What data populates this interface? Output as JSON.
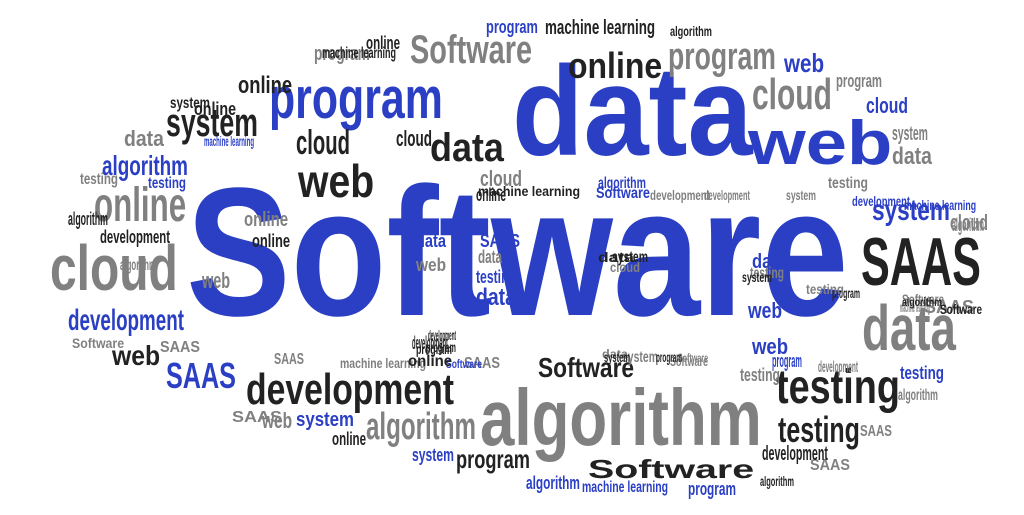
{
  "palette": {
    "blue": "#2b3fc4",
    "black": "#222222",
    "gray": "#808080",
    "background": "#ffffff"
  },
  "words": [
    {
      "text": "Software",
      "color": "blue"
    },
    {
      "text": "data",
      "color": "blue"
    },
    {
      "text": "algorithm",
      "color": "gray"
    },
    {
      "text": "program",
      "color": "blue"
    },
    {
      "text": "web",
      "color": "blue"
    },
    {
      "text": "cloud",
      "color": "gray"
    },
    {
      "text": "SAAS",
      "color": "black"
    },
    {
      "text": "data",
      "color": "gray"
    },
    {
      "text": "development",
      "color": "black"
    },
    {
      "text": "testing",
      "color": "black"
    },
    {
      "text": "online",
      "color": "gray"
    },
    {
      "text": "system",
      "color": "black"
    },
    {
      "text": "Software",
      "color": "gray"
    },
    {
      "text": "online",
      "color": "black"
    },
    {
      "text": "program",
      "color": "gray"
    },
    {
      "text": "cloud",
      "color": "gray"
    },
    {
      "text": "web",
      "color": "black"
    },
    {
      "text": "data",
      "color": "black"
    },
    {
      "text": "machine learning",
      "color": "black"
    },
    {
      "text": "algorithm",
      "color": "gray"
    },
    {
      "text": "Software",
      "color": "black"
    },
    {
      "text": "testing",
      "color": "black"
    },
    {
      "text": "SAAS",
      "color": "blue"
    },
    {
      "text": "development",
      "color": "blue"
    },
    {
      "text": "web",
      "color": "black"
    },
    {
      "text": "program",
      "color": "black"
    },
    {
      "text": "system",
      "color": "blue"
    },
    {
      "text": "algorithm",
      "color": "blue"
    },
    {
      "text": "cloud",
      "color": "black"
    },
    {
      "text": "cloud",
      "color": "black"
    },
    {
      "text": "cloud",
      "color": "blue"
    },
    {
      "text": "cloud",
      "color": "gray"
    },
    {
      "text": "cloud",
      "color": "gray"
    },
    {
      "text": "data",
      "color": "gray"
    },
    {
      "text": "data",
      "color": "gray"
    },
    {
      "text": "data",
      "color": "blue"
    },
    {
      "text": "data",
      "color": "blue"
    },
    {
      "text": "data",
      "color": "blue"
    },
    {
      "text": "data",
      "color": "gray"
    },
    {
      "text": "web",
      "color": "gray"
    },
    {
      "text": "web",
      "color": "gray"
    },
    {
      "text": "web",
      "color": "blue"
    },
    {
      "text": "web",
      "color": "blue"
    },
    {
      "text": "web",
      "color": "gray"
    },
    {
      "text": "web",
      "color": "blue"
    },
    {
      "text": "online",
      "color": "black"
    },
    {
      "text": "online",
      "color": "black"
    },
    {
      "text": "online",
      "color": "black"
    },
    {
      "text": "online",
      "color": "gray"
    },
    {
      "text": "online",
      "color": "black"
    },
    {
      "text": "online",
      "color": "black"
    },
    {
      "text": "online",
      "color": "black"
    },
    {
      "text": "program",
      "color": "gray"
    },
    {
      "text": "program",
      "color": "blue"
    },
    {
      "text": "program",
      "color": "blue"
    },
    {
      "text": "program",
      "color": "black"
    },
    {
      "text": "program",
      "color": "black"
    },
    {
      "text": "program",
      "color": "blue"
    },
    {
      "text": "program",
      "color": "gray"
    },
    {
      "text": "development",
      "color": "gray"
    },
    {
      "text": "development",
      "color": "gray"
    },
    {
      "text": "development",
      "color": "black"
    },
    {
      "text": "development",
      "color": "blue"
    },
    {
      "text": "development",
      "color": "black"
    },
    {
      "text": "development",
      "color": "black"
    },
    {
      "text": "system",
      "color": "gray"
    },
    {
      "text": "system",
      "color": "black"
    },
    {
      "text": "system",
      "color": "blue"
    },
    {
      "text": "system",
      "color": "blue"
    },
    {
      "text": "system",
      "color": "gray"
    },
    {
      "text": "system",
      "color": "black"
    },
    {
      "text": "algorithm",
      "color": "blue"
    },
    {
      "text": "algorithm",
      "color": "gray"
    },
    {
      "text": "algorithm",
      "color": "gray"
    },
    {
      "text": "algorithm",
      "color": "blue"
    },
    {
      "text": "algorithm",
      "color": "black"
    },
    {
      "text": "algorithm",
      "color": "black"
    },
    {
      "text": "algorithm",
      "color": "black"
    },
    {
      "text": "testing",
      "color": "gray"
    },
    {
      "text": "testing",
      "color": "blue"
    },
    {
      "text": "testing",
      "color": "gray"
    },
    {
      "text": "testing",
      "color": "blue"
    },
    {
      "text": "testing",
      "color": "gray"
    },
    {
      "text": "testing",
      "color": "blue"
    },
    {
      "text": "testing",
      "color": "gray"
    },
    {
      "text": "SAAS",
      "color": "blue"
    },
    {
      "text": "SAAS",
      "color": "gray"
    },
    {
      "text": "SAAS",
      "color": "gray"
    },
    {
      "text": "SAAS",
      "color": "gray"
    },
    {
      "text": "SAAS",
      "color": "gray"
    },
    {
      "text": "SAAS",
      "color": "gray"
    },
    {
      "text": "SAAS",
      "color": "gray"
    },
    {
      "text": "Software",
      "color": "gray"
    },
    {
      "text": "Software",
      "color": "blue"
    },
    {
      "text": "Software",
      "color": "blue"
    },
    {
      "text": "Software",
      "color": "gray"
    },
    {
      "text": "Software",
      "color": "gray"
    },
    {
      "text": "Software",
      "color": "black"
    },
    {
      "text": "machine learning",
      "color": "black"
    },
    {
      "text": "machine learning",
      "color": "black"
    },
    {
      "text": "machine learning",
      "color": "gray"
    },
    {
      "text": "machine learning",
      "color": "blue"
    },
    {
      "text": "machine learning",
      "color": "blue"
    },
    {
      "text": "machine learning",
      "color": "blue"
    },
    {
      "text": "data",
      "color": "gray"
    },
    {
      "text": "online",
      "color": "black"
    },
    {
      "text": "data",
      "color": "black"
    },
    {
      "text": "program",
      "color": "black"
    },
    {
      "text": "system",
      "color": "black"
    },
    {
      "text": "program",
      "color": "black"
    },
    {
      "text": "system",
      "color": "gray"
    },
    {
      "text": "Software",
      "color": "gray"
    },
    {
      "text": "development",
      "color": "gray"
    },
    {
      "text": "cloud",
      "color": "gray"
    },
    {
      "text": "system",
      "color": "black"
    },
    {
      "text": "machine learning",
      "color": "gray"
    },
    {
      "text": "SAAS",
      "color": "gray"
    },
    {
      "text": "development",
      "color": "black"
    },
    {
      "text": "algorithm",
      "color": "black"
    },
    {
      "text": "Software",
      "color": "black"
    },
    {
      "text": "testing",
      "color": "gray"
    },
    {
      "text": "algorithm",
      "color": "gray"
    },
    {
      "text": "program",
      "color": "gray"
    },
    {
      "text": "cloud",
      "color": "gray"
    }
  ]
}
